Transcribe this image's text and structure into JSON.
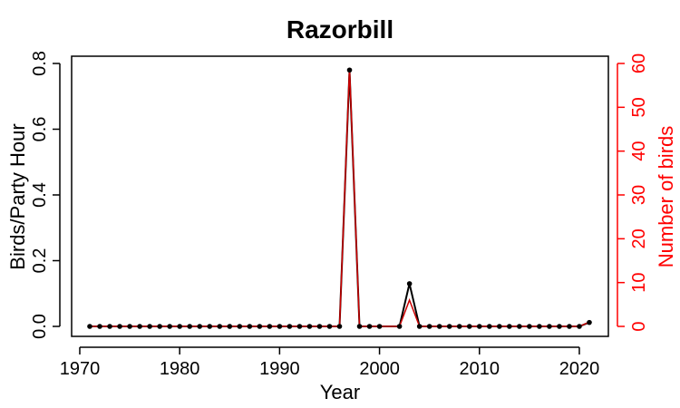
{
  "chart_data": {
    "type": "line",
    "title": "Razorbill",
    "xlabel": "Year",
    "ylabel_left": "Birds/Party Hour",
    "ylabel_right": "Number of birds",
    "xlim": [
      1971,
      2021
    ],
    "ylim_left": [
      0,
      0.8
    ],
    "ylim_right": [
      0,
      60
    ],
    "x_ticks": [
      1970,
      1980,
      1990,
      2000,
      2010,
      2020
    ],
    "y_left_ticks": [
      0.0,
      0.2,
      0.4,
      0.6,
      0.8
    ],
    "y_left_tick_labels": [
      "0.0",
      "0.2",
      "0.4",
      "0.6",
      "0.8"
    ],
    "y_right_ticks": [
      0,
      10,
      20,
      30,
      40,
      50,
      60
    ],
    "colors": {
      "left_series": "#000000",
      "right_series": "#cc0000",
      "right_axis": "#ff0000"
    },
    "x": [
      1971,
      1972,
      1973,
      1974,
      1975,
      1976,
      1977,
      1978,
      1979,
      1980,
      1981,
      1982,
      1983,
      1984,
      1985,
      1986,
      1987,
      1988,
      1989,
      1990,
      1991,
      1992,
      1993,
      1994,
      1995,
      1996,
      1997,
      1998,
      1999,
      2000,
      2002,
      2003,
      2004,
      2005,
      2006,
      2007,
      2008,
      2009,
      2010,
      2011,
      2012,
      2013,
      2014,
      2015,
      2016,
      2017,
      2018,
      2019,
      2020,
      2021
    ],
    "series": [
      {
        "axis": "left",
        "values": [
          0,
          0,
          0,
          0,
          0,
          0,
          0,
          0,
          0,
          0,
          0,
          0,
          0,
          0,
          0,
          0,
          0,
          0,
          0,
          0,
          0,
          0,
          0,
          0,
          0,
          0,
          0.78,
          0,
          0,
          0,
          0,
          0.13,
          0,
          0,
          0,
          0,
          0,
          0,
          0,
          0,
          0,
          0,
          0,
          0,
          0,
          0,
          0,
          0,
          0,
          0.012
        ],
        "markers": true
      },
      {
        "axis": "right",
        "values": [
          0,
          0,
          0,
          0,
          0,
          0,
          0,
          0,
          0,
          0,
          0,
          0,
          0,
          0,
          0,
          0,
          0,
          0,
          0,
          0,
          0,
          0,
          0,
          0,
          0,
          0,
          59,
          0,
          0,
          0,
          0,
          6,
          0,
          0,
          0,
          0,
          0,
          0,
          0,
          0,
          0,
          0,
          0,
          0,
          0,
          0,
          0,
          0,
          0,
          1
        ],
        "markers": false
      }
    ]
  }
}
